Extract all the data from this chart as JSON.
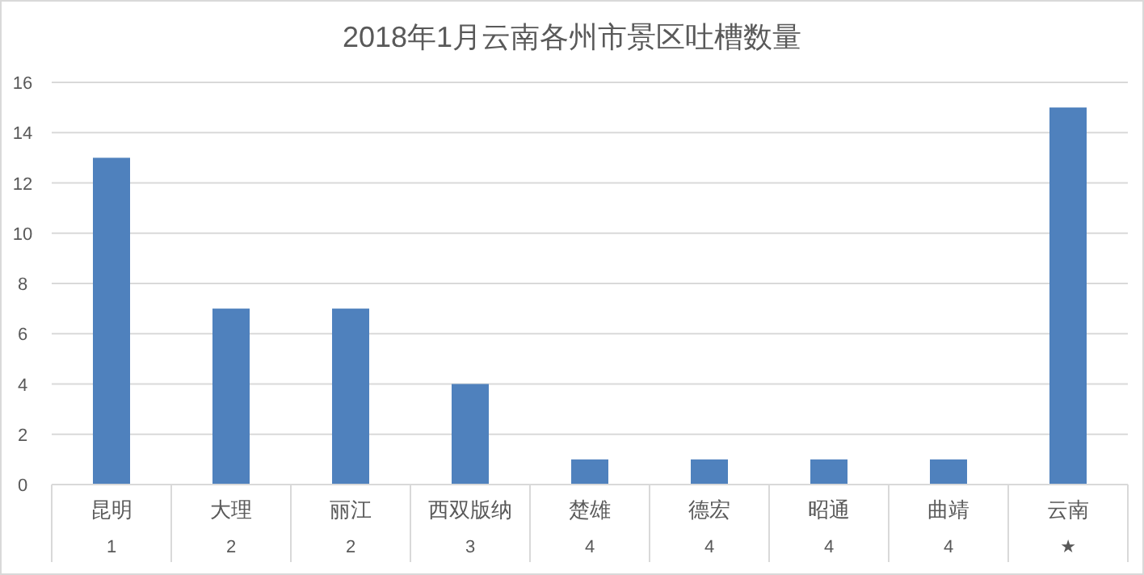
{
  "chart_data": {
    "type": "bar",
    "title": "2018年1月云南各州市景区吐槽数量",
    "categories": [
      "昆明\n1",
      "大理\n2",
      "丽江\n2",
      "西双版纳\n3",
      "楚雄\n4",
      "德宏\n4",
      "昭通\n4",
      "曲靖\n4",
      "云南\n★"
    ],
    "values": [
      13,
      7,
      7,
      4,
      1,
      1,
      1,
      1,
      15
    ],
    "color": "#4f81bd",
    "ylim": [
      0,
      16
    ],
    "yticks": [
      0,
      2,
      4,
      6,
      8,
      10,
      12,
      14,
      16
    ],
    "grid": "y"
  }
}
